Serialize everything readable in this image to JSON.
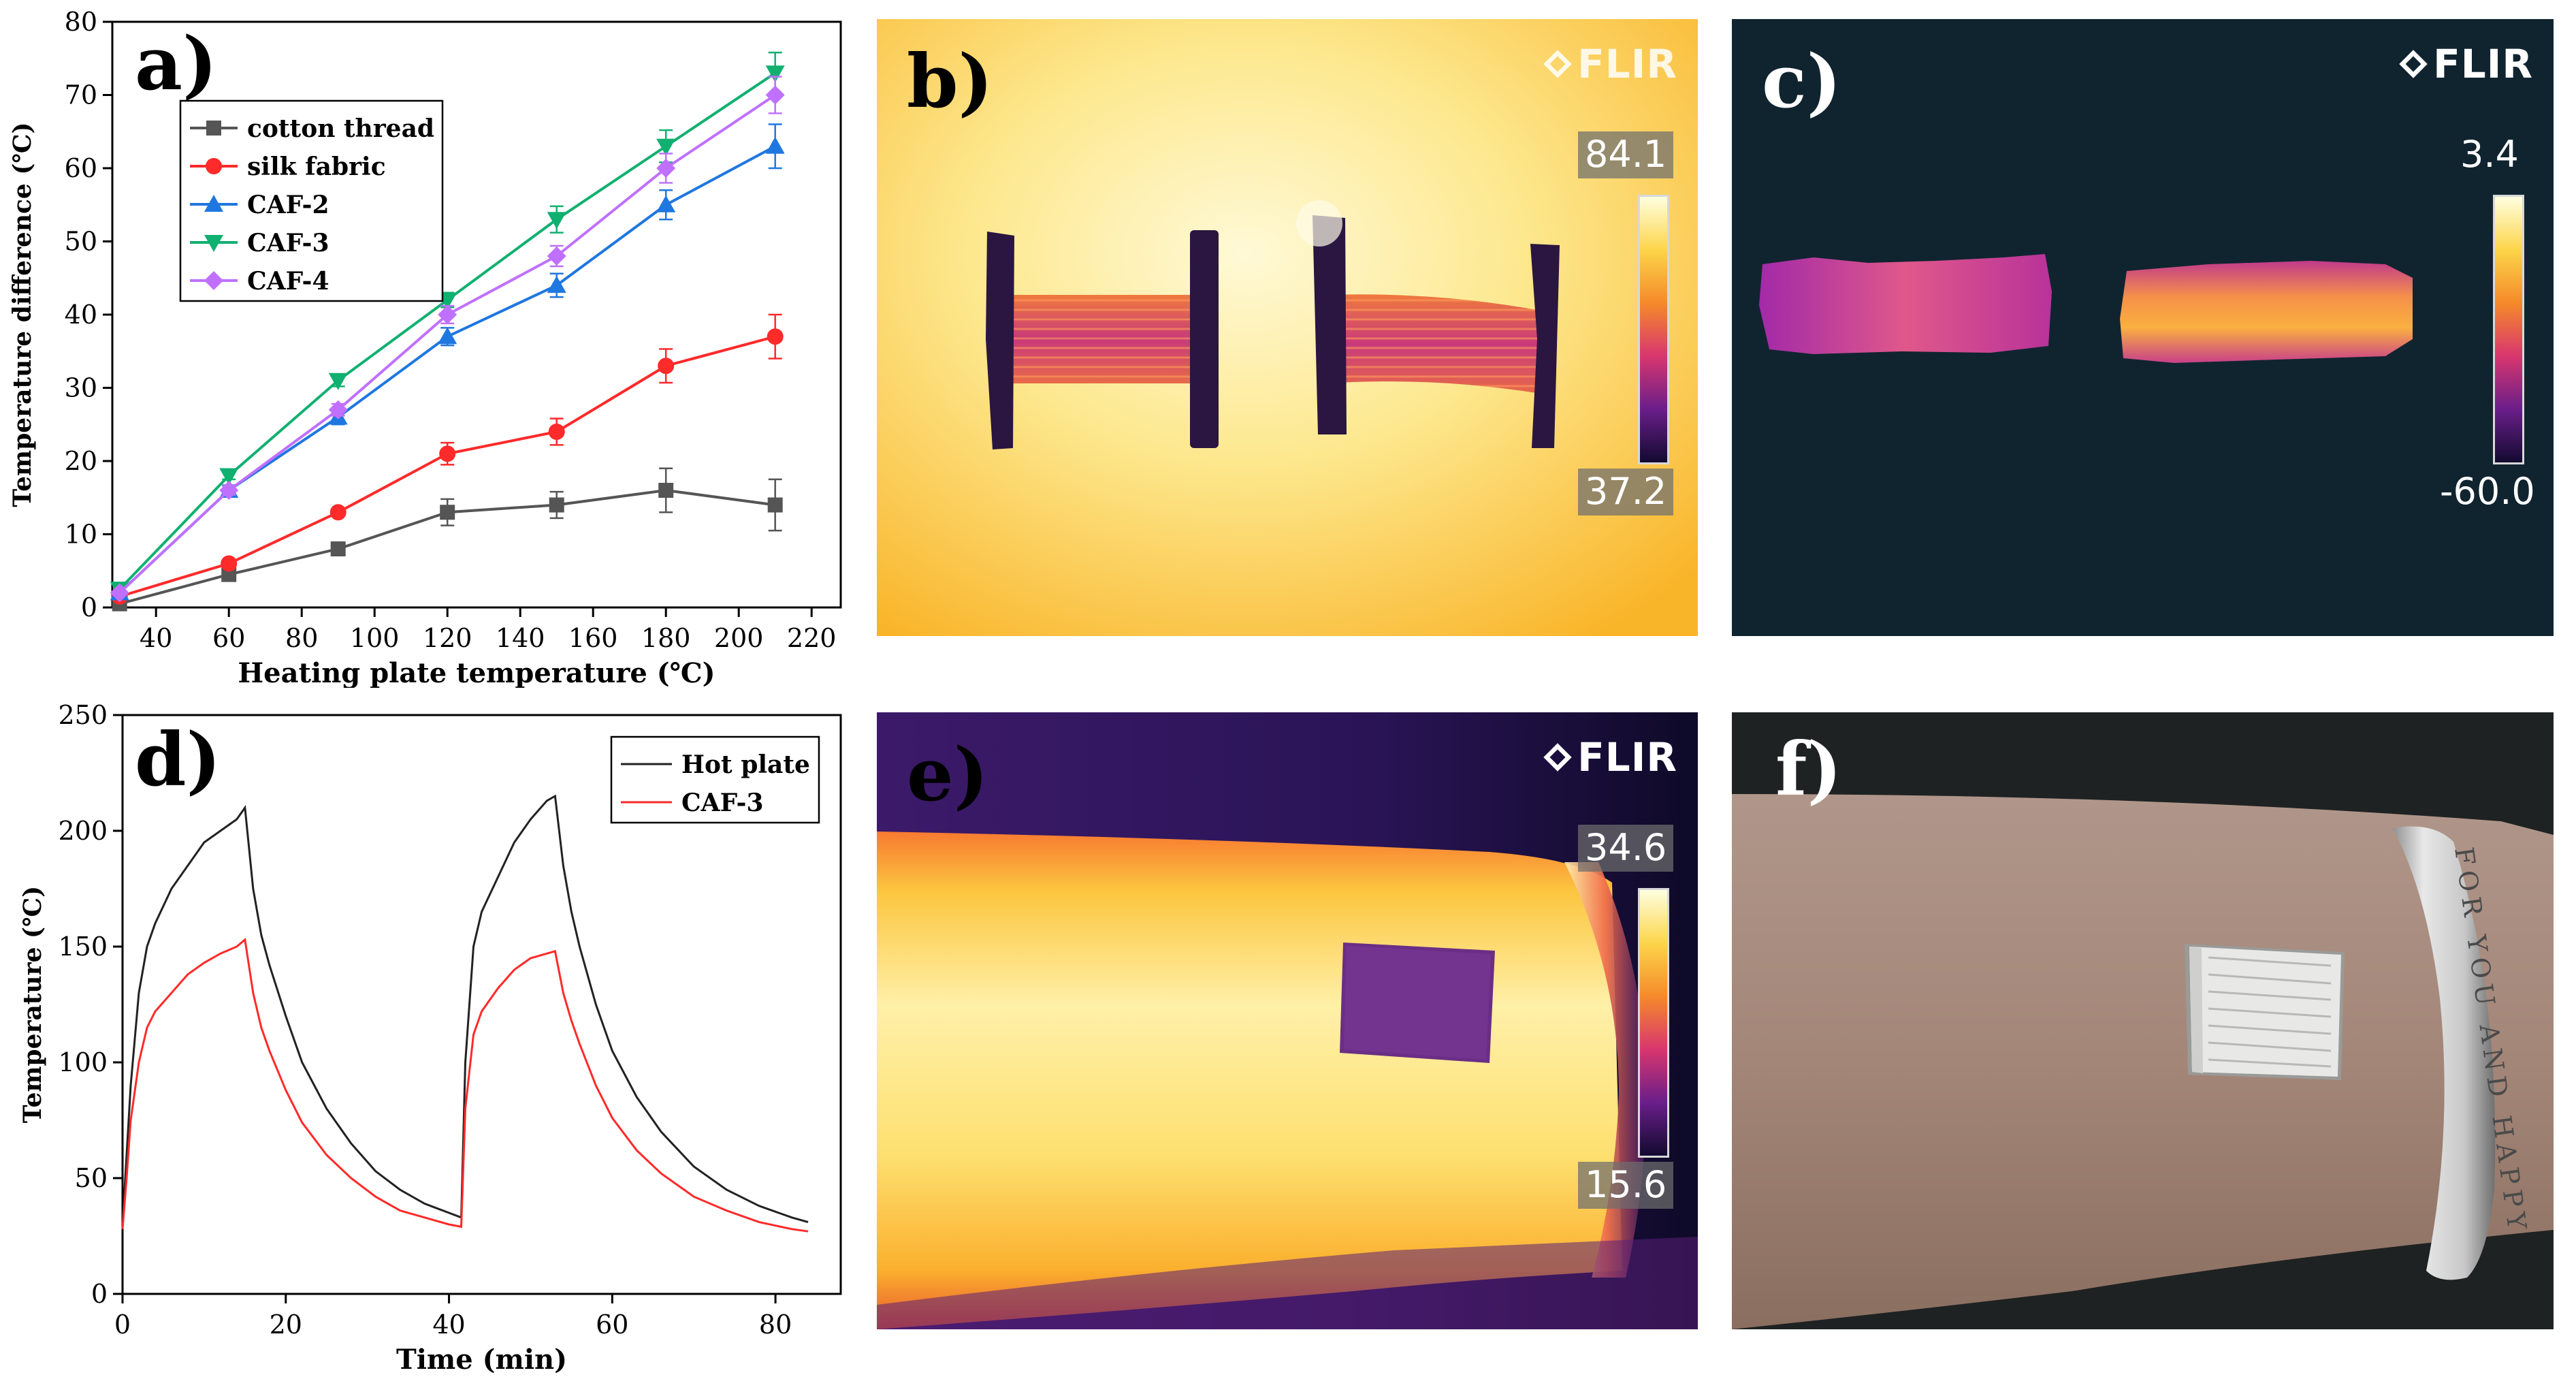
{
  "panel_a": {
    "letter": "a)",
    "chart_data": {
      "type": "line",
      "title": "",
      "xlabel": "Heating plate temperature (℃)",
      "ylabel": "Temperature difference (℃)",
      "xlim": [
        28,
        228
      ],
      "ylim": [
        0,
        80
      ],
      "xticks": [
        40,
        60,
        80,
        100,
        120,
        140,
        160,
        180,
        200,
        220
      ],
      "yticks": [
        0,
        10,
        20,
        30,
        40,
        50,
        60,
        70,
        80
      ],
      "x": [
        30,
        60,
        90,
        120,
        150,
        180,
        210
      ],
      "legend_position": "top-left",
      "series": [
        {
          "name": "cotton thread",
          "color": "#555555",
          "marker": "square",
          "values": [
            0.5,
            4.5,
            8,
            13,
            14,
            16,
            14
          ],
          "errors": [
            0.5,
            0.5,
            0.5,
            1.8,
            1.8,
            3,
            3.5
          ]
        },
        {
          "name": "silk fabric",
          "color": "#ff2a2a",
          "marker": "circle",
          "values": [
            1.5,
            6,
            13,
            21,
            24,
            33,
            37
          ],
          "errors": [
            0.3,
            0.5,
            0.5,
            1.5,
            1.8,
            2.3,
            3
          ]
        },
        {
          "name": "CAF-2",
          "color": "#1f77e0",
          "marker": "triangle-up",
          "values": [
            2,
            16,
            26,
            37,
            44,
            55,
            63
          ],
          "errors": [
            0.3,
            0.7,
            1,
            1.2,
            1.6,
            2,
            3
          ]
        },
        {
          "name": "CAF-3",
          "color": "#10b070",
          "marker": "triangle-down",
          "values": [
            2.5,
            18,
            31,
            42,
            53,
            63,
            73
          ],
          "errors": [
            0.3,
            0.5,
            0.8,
            1,
            1.8,
            2.2,
            2.8
          ]
        },
        {
          "name": "CAF-4",
          "color": "#c070ff",
          "marker": "diamond",
          "values": [
            2,
            16,
            27,
            40,
            48,
            60,
            70
          ],
          "errors": [
            0.3,
            0.6,
            0.8,
            1.2,
            1.4,
            2,
            2.5
          ]
        }
      ]
    }
  },
  "panel_b": {
    "letter": "b)",
    "brand": "FLIR",
    "scale_max": "84.1",
    "scale_min": "37.2"
  },
  "panel_c": {
    "letter": "c)",
    "brand": "FLIR",
    "scale_max": "3.4",
    "scale_min": "-60.0"
  },
  "panel_d": {
    "letter": "d)",
    "chart_data": {
      "type": "line",
      "title": "",
      "xlabel": "Time (min)",
      "ylabel": "Temperature (℃)",
      "xlim": [
        0,
        88
      ],
      "ylim": [
        0,
        250
      ],
      "xticks": [
        0,
        20,
        40,
        60,
        80
      ],
      "yticks": [
        0,
        50,
        100,
        150,
        200,
        250
      ],
      "legend_position": "top-right",
      "series": [
        {
          "name": "Hot plate",
          "color": "#222222",
          "x": [
            0,
            0.5,
            1,
            2,
            3,
            4,
            6,
            8,
            10,
            12,
            14,
            15,
            16,
            17,
            18,
            20,
            22,
            25,
            28,
            31,
            34,
            37,
            40,
            41.5,
            42,
            43,
            44,
            46,
            48,
            50,
            52,
            53,
            54,
            55,
            56,
            58,
            60,
            63,
            66,
            70,
            74,
            78,
            82,
            84
          ],
          "values": [
            30,
            60,
            90,
            130,
            150,
            160,
            175,
            185,
            195,
            200,
            205,
            210,
            175,
            155,
            142,
            120,
            100,
            80,
            65,
            53,
            45,
            39,
            35,
            33,
            100,
            150,
            165,
            180,
            195,
            205,
            213,
            215,
            185,
            165,
            150,
            125,
            105,
            85,
            70,
            55,
            45,
            38,
            33,
            31
          ]
        },
        {
          "name": "CAF-3",
          "color": "#ff2a2a",
          "x": [
            0,
            0.5,
            1,
            2,
            3,
            4,
            6,
            8,
            10,
            12,
            14,
            15,
            16,
            17,
            18,
            20,
            22,
            25,
            28,
            31,
            34,
            37,
            40,
            41.5,
            42,
            43,
            44,
            46,
            48,
            50,
            52,
            53,
            54,
            55,
            56,
            58,
            60,
            63,
            66,
            70,
            74,
            78,
            82,
            84
          ],
          "values": [
            28,
            50,
            75,
            100,
            115,
            122,
            130,
            138,
            143,
            147,
            150,
            153,
            130,
            115,
            105,
            88,
            74,
            60,
            50,
            42,
            36,
            33,
            30,
            29,
            80,
            112,
            122,
            132,
            140,
            145,
            147,
            148,
            130,
            118,
            108,
            90,
            76,
            62,
            52,
            42,
            36,
            31,
            28,
            27
          ]
        }
      ]
    }
  },
  "panel_e": {
    "letter": "e)",
    "brand": "FLIR",
    "scale_max": "34.6",
    "scale_min": "15.6"
  },
  "panel_f": {
    "letter": "f)",
    "bracelet_text": "FOR YOU AND HAPPY"
  }
}
